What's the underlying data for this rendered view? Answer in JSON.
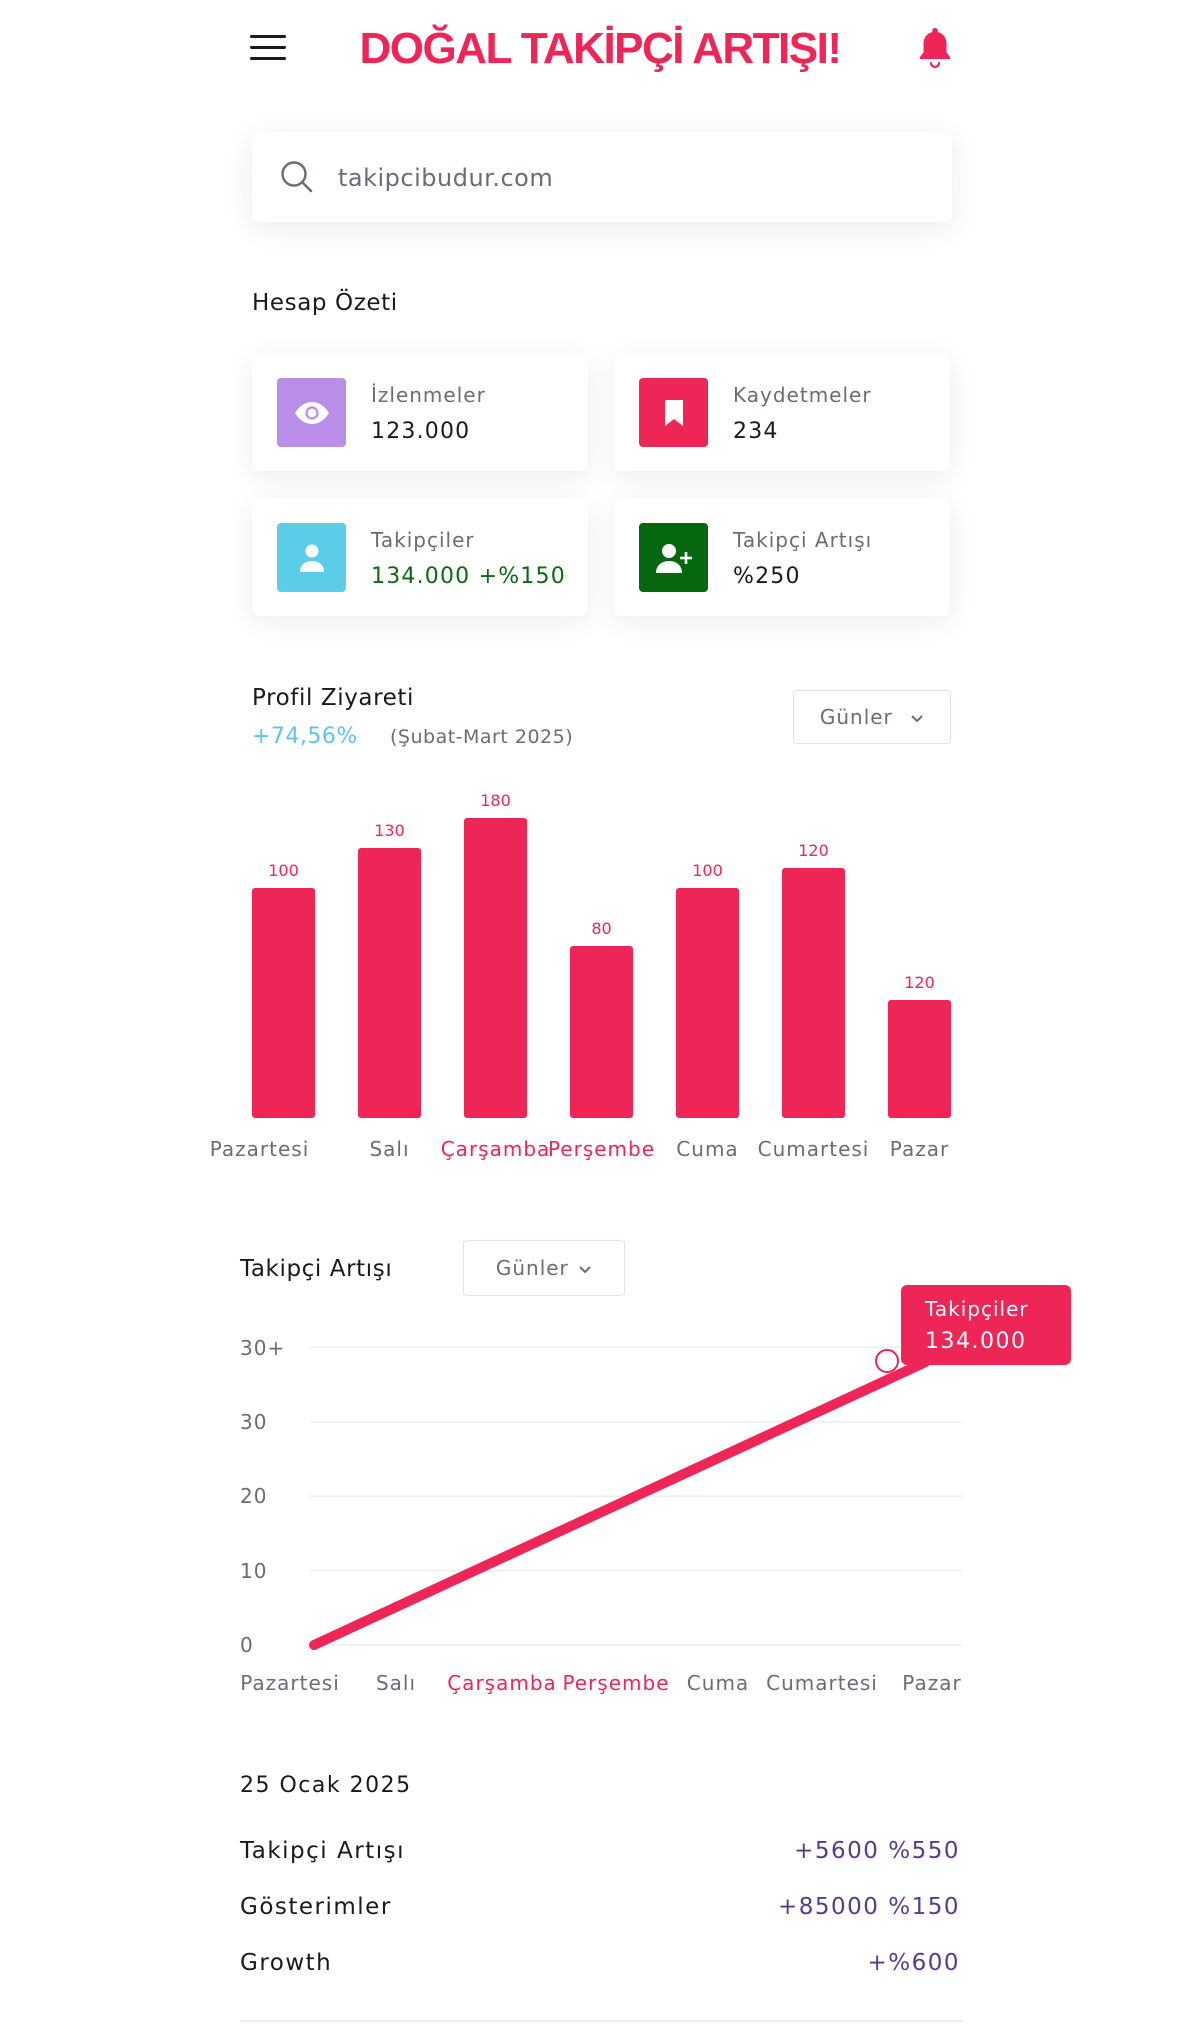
{
  "header": {
    "brand": "DOĞAL TAKİPÇİ ARTIŞI!",
    "menu_icon": "hamburger-icon",
    "bell_icon": "bell-icon"
  },
  "search": {
    "placeholder": "takipcibudur.com",
    "icon": "search-icon"
  },
  "summary": {
    "title": "Hesap Özeti",
    "cards": [
      {
        "label": "İzlenmeler",
        "value": "123.000",
        "icon": "eye-icon",
        "color": "#b98ee8"
      },
      {
        "label": "Kaydetmeler",
        "value": "234",
        "icon": "bookmark-icon",
        "color": "#ed2657"
      },
      {
        "label": "Takipçiler",
        "value": "134.000 +%150",
        "icon": "user-icon",
        "color": "#5ccde8",
        "value_color": "#0a6a12"
      },
      {
        "label": "Takipçi Artışı",
        "value": "%250",
        "icon": "user-plus-icon",
        "color": "#05670e"
      }
    ]
  },
  "profile_visits": {
    "title": "Profil Ziyareti",
    "change": "+74,56%",
    "period": "(Şubat-Mart 2025)",
    "dropdown": "Günler"
  },
  "follower_growth": {
    "title": "Takipçi Artışı",
    "dropdown": "Günler",
    "tooltip_label": "Takipçiler",
    "tooltip_value": "134.000"
  },
  "chart_data": [
    {
      "type": "bar",
      "categories": [
        "Pazartesi",
        "Salı",
        "Çarşamba",
        "Perşembe",
        "Cuma",
        "Cumartesi",
        "Pazar"
      ],
      "values": [
        100,
        130,
        180,
        80,
        100,
        120,
        120
      ],
      "highlighted_categories": [
        "Çarşamba",
        "Perşembe"
      ],
      "bar_color": "#ed2657"
    },
    {
      "type": "line",
      "categories": [
        "Pazartesi",
        "Salı",
        "Çarşamba",
        "Perşembe",
        "Cuma",
        "Cumartesi",
        "Pazar"
      ],
      "y_ticks": [
        "0",
        "10",
        "20",
        "30",
        "30+"
      ],
      "ylim": [
        0,
        40
      ],
      "series": [
        {
          "name": "Takipçiler",
          "x": [
            "Pazartesi",
            "Pazar"
          ],
          "values": [
            0,
            38
          ]
        }
      ],
      "highlighted_categories": [
        "Çarşamba",
        "Perşembe"
      ],
      "line_color": "#ed2657",
      "grid": true
    }
  ],
  "details": {
    "date": "25 Ocak 2025",
    "rows": [
      {
        "label": "Takipçi Artışı",
        "value": "+5600 %550"
      },
      {
        "label": "Gösterimler",
        "value": "+85000 %150"
      },
      {
        "label": "Growth",
        "value": "+%600"
      }
    ]
  }
}
